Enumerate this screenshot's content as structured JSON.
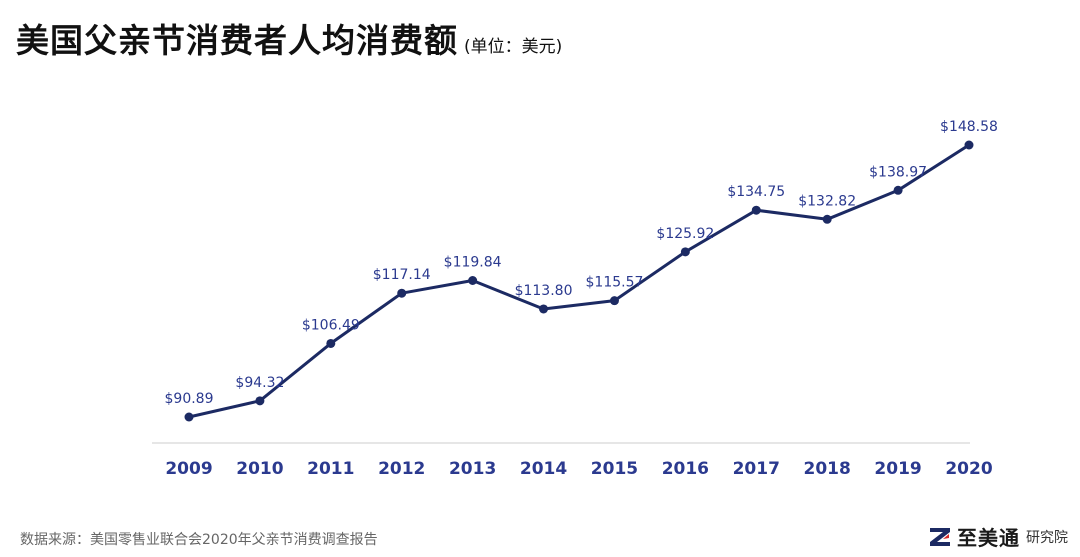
{
  "header": {
    "title": "美国父亲节消费者人均消费额",
    "unit": "(单位：美元)"
  },
  "chart_data": {
    "type": "line",
    "title": "美国父亲节消费者人均消费额",
    "subtitle": "(单位：美元)",
    "xlabel": "",
    "ylabel": "",
    "categories": [
      "2009",
      "2010",
      "2011",
      "2012",
      "2013",
      "2014",
      "2015",
      "2016",
      "2017",
      "2018",
      "2019",
      "2020"
    ],
    "series": [
      {
        "values": [
          90.89,
          94.32,
          106.49,
          117.14,
          119.84,
          113.8,
          115.57,
          125.92,
          134.75,
          132.82,
          138.97,
          148.58
        ],
        "labels": [
          "$90.89",
          "$94.32",
          "$106.49",
          "$117.14",
          "$119.84",
          "$113.80",
          "$115.57",
          "$125.92",
          "$134.75",
          "$132.82",
          "$138.97",
          "$148.58"
        ]
      }
    ],
    "ylim": [
      78,
      158
    ],
    "grid": false,
    "legend": "none",
    "colors": {
      "line": "#1c2a63",
      "data_label": "#2b3a8f",
      "tick_label": "#2b3a8f",
      "axis": "#cccccc"
    }
  },
  "footer": {
    "source": "数据来源：美国零售业联合会2020年父亲节消费调查报告",
    "brand_name": "至美通",
    "brand_sub": "研究院",
    "brand_icon": "z-logo-icon"
  }
}
